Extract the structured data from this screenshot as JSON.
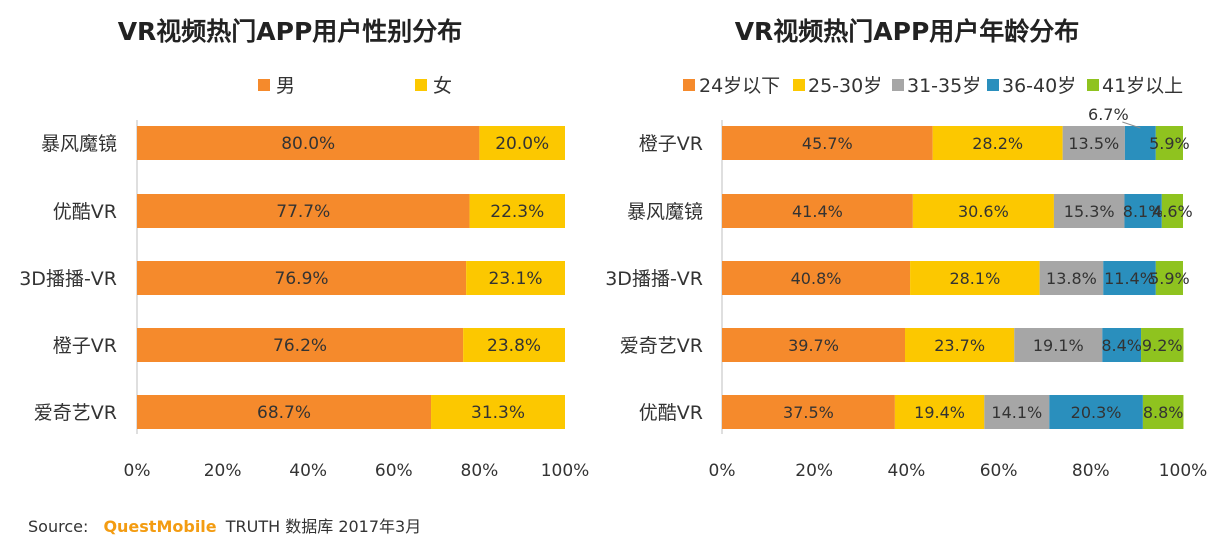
{
  "source": {
    "prefix": "Source:",
    "brand": "QuestMobile",
    "rest": "TRUTH 数据库 2017年3月"
  },
  "chart_data": [
    {
      "type": "bar",
      "orientation": "horizontal",
      "stacked": true,
      "title": "VR视频热门APP用户性别分布",
      "categories": [
        "暴风魔镜",
        "优酷VR",
        "3D播播-VR",
        "橙子VR",
        "爱奇艺VR"
      ],
      "series": [
        {
          "name": "男",
          "color": "#f58a2c",
          "values": [
            80.0,
            77.7,
            76.9,
            76.2,
            68.7
          ]
        },
        {
          "name": "女",
          "color": "#fcc800",
          "values": [
            20.0,
            22.3,
            23.1,
            23.8,
            31.3
          ]
        }
      ],
      "xlim": [
        0,
        100
      ],
      "xticks": [
        "0%",
        "20%",
        "40%",
        "60%",
        "80%",
        "100%"
      ],
      "legend": "top"
    },
    {
      "type": "bar",
      "orientation": "horizontal",
      "stacked": true,
      "title": "VR视频热门APP用户年龄分布",
      "categories": [
        "橙子VR",
        "暴风魔镜",
        "3D播播-VR",
        "爱奇艺VR",
        "优酷VR"
      ],
      "series": [
        {
          "name": "24岁以下",
          "color": "#f58a2c",
          "values": [
            45.7,
            41.4,
            40.8,
            39.7,
            37.5
          ]
        },
        {
          "name": "25-30岁",
          "color": "#fcc800",
          "values": [
            28.2,
            30.6,
            28.1,
            23.7,
            19.4
          ]
        },
        {
          "name": "31-35岁",
          "color": "#a6a6a6",
          "values": [
            13.5,
            15.3,
            13.8,
            19.1,
            14.1
          ]
        },
        {
          "name": "36-40岁",
          "color": "#2a8fbd",
          "values": [
            6.7,
            8.1,
            11.4,
            8.4,
            20.3
          ]
        },
        {
          "name": "41岁以上",
          "color": "#8fc31f",
          "values": [
            5.9,
            4.6,
            5.9,
            9.2,
            8.8
          ]
        }
      ],
      "callout": {
        "category": "橙子VR",
        "series": "36-40岁",
        "label": "6.7%"
      },
      "xlim": [
        0,
        100
      ],
      "xticks": [
        "0%",
        "20%",
        "40%",
        "60%",
        "80%",
        "100%"
      ],
      "legend": "top"
    }
  ]
}
